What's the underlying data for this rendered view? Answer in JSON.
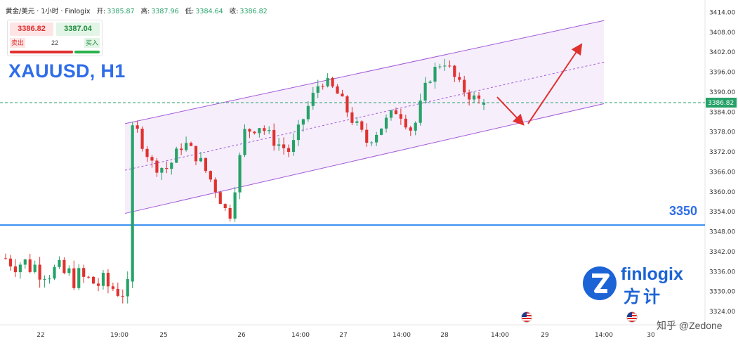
{
  "header": {
    "instrument": "黄金/美元 · 1小时 · Finlogix",
    "open_label": "开:",
    "open": "3385.87",
    "high_label": "高:",
    "high": "3387.96",
    "low_label": "低:",
    "low": "3384.64",
    "close_label": "收:",
    "close": "3386.82"
  },
  "ticket": {
    "sell_price": "3386.82",
    "buy_price": "3387.04",
    "sell_label": "卖出",
    "buy_label": "买入",
    "spread": "22"
  },
  "symbol_title": "XAUUSD, H1",
  "level_label": "3350",
  "logo": {
    "name": "finlogix",
    "name_cn": "方计"
  },
  "watermark": "知乎 @Zedone",
  "colors": {
    "up": "#26a269",
    "down": "#e0312f",
    "channel": "#a35bd8",
    "channel_fill": "#f6eefb",
    "level": "#2f8cf0",
    "price_line": "#26a269",
    "arrow": "#e0312f",
    "accent": "#2f6de8"
  },
  "chart_data": {
    "type": "candlestick",
    "title": "XAUUSD, H1",
    "ylim": [
      3320,
      3416
    ],
    "y_ticks": [
      "3414.00",
      "3408.00",
      "3402.00",
      "3396.00",
      "3390.00",
      "3384.00",
      "3378.00",
      "3372.00",
      "3366.00",
      "3360.00",
      "3354.00",
      "3348.00",
      "3342.00",
      "3336.00",
      "3330.00",
      "3324.00"
    ],
    "x_ticks": [
      "22",
      "19:00",
      "25",
      "26",
      "14:00",
      "27",
      "14:00",
      "28",
      "14:00",
      "29",
      "14:00",
      "30"
    ],
    "last_price": "3386.82",
    "horizontal_level": 3350,
    "segments": [
      {
        "phase": "initial",
        "n": 26,
        "drift": [
          3340,
          3330
        ],
        "vol": 4
      },
      {
        "phase": "gap",
        "n": 1,
        "value": [
          3333,
          3380
        ]
      },
      {
        "phase": "channel",
        "n": 70,
        "path": [
          3378,
          3368,
          3367,
          3375,
          3370,
          3362,
          3352,
          3378,
          3380,
          3375,
          3372,
          3384,
          3394,
          3390,
          3382,
          3375,
          3380,
          3385,
          3378,
          3394,
          3400,
          3392,
          3388
        ]
      },
      {
        "phase": "last",
        "n": 2,
        "value": [
          3388,
          3386.8
        ]
      }
    ],
    "channel": {
      "upper": [
        3380.5,
        3411.5
      ],
      "middle": [
        3366.5,
        3399
      ],
      "lower": [
        3353.5,
        3386.5
      ]
    },
    "projection_arrow": [
      "down to 3381",
      "up to 3404"
    ]
  }
}
